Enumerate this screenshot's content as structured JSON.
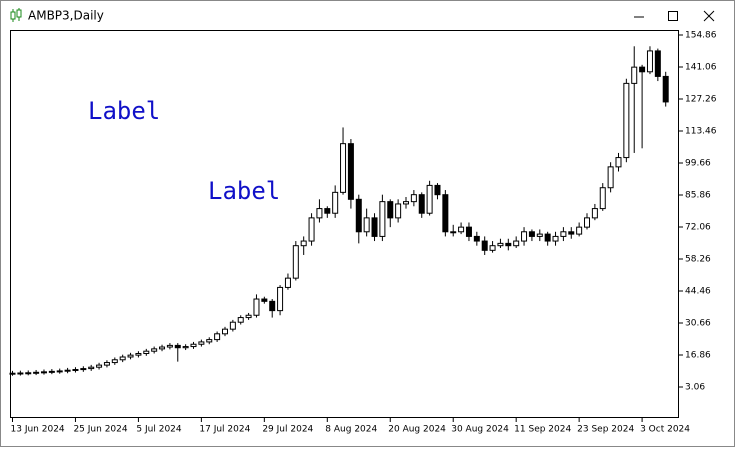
{
  "chart_data": {
    "type": "candlestick",
    "title": "AMBP3,Daily",
    "annotations": [
      "Label",
      "Label"
    ],
    "up_color": "#ffffff",
    "down_color": "#000000",
    "categories": [
      "13 Jun 2024",
      null,
      null,
      null,
      null,
      null,
      null,
      null,
      "25 Jun 2024",
      null,
      null,
      null,
      null,
      null,
      null,
      null,
      "5 Jul 2024",
      null,
      null,
      null,
      null,
      null,
      null,
      null,
      "17 Jul 2024",
      null,
      null,
      null,
      null,
      null,
      null,
      null,
      "29 Jul 2024",
      null,
      null,
      null,
      null,
      null,
      null,
      null,
      "8 Aug 2024",
      null,
      null,
      null,
      null,
      null,
      null,
      null,
      "20 Aug 2024",
      null,
      null,
      null,
      null,
      null,
      null,
      null,
      "30 Aug 2024",
      null,
      null,
      null,
      null,
      null,
      null,
      null,
      "11 Sep 2024",
      null,
      null,
      null,
      null,
      null,
      null,
      null,
      "23 Sep 2024",
      null,
      null,
      null,
      null,
      null,
      null,
      null,
      "3 Oct 2024",
      null,
      null,
      null
    ],
    "open": [
      8.9,
      9.0,
      9.1,
      9.2,
      9.4,
      9.6,
      9.8,
      10.0,
      10.3,
      10.6,
      11.0,
      11.6,
      12.5,
      13.6,
      14.8,
      16.0,
      16.8,
      17.5,
      18.5,
      19.5,
      20.3,
      21.0,
      20.0,
      20.5,
      21.5,
      22.5,
      23.5,
      26.0,
      28.0,
      31.0,
      33,
      34,
      41,
      40,
      36,
      46,
      50,
      64,
      66,
      76,
      80,
      78,
      87,
      108,
      84,
      70,
      76,
      68,
      83,
      76,
      82,
      83,
      86,
      78,
      90,
      86,
      70,
      70,
      72,
      68,
      66,
      62,
      64,
      65,
      64,
      66,
      70,
      68,
      69,
      66,
      68,
      70,
      69,
      72,
      76,
      80,
      89,
      98,
      102,
      134,
      141,
      139,
      148,
      137
    ],
    "high": [
      10.0,
      10.1,
      10.2,
      10.4,
      10.6,
      10.8,
      11.0,
      11.3,
      11.6,
      12.0,
      12.6,
      13.5,
      14.6,
      15.8,
      17.0,
      17.8,
      18.5,
      19.5,
      20.5,
      21.3,
      22.0,
      22.0,
      21.5,
      22.5,
      23.5,
      24.5,
      27.0,
      29.0,
      32.0,
      34.0,
      35,
      43,
      42,
      41,
      47,
      52,
      66,
      68,
      78,
      84,
      81,
      90,
      115,
      110,
      86,
      80,
      78,
      86,
      84,
      84,
      85,
      88,
      87,
      92,
      91,
      88,
      73,
      74,
      74,
      70,
      68,
      66,
      67,
      67,
      68,
      72,
      71,
      71,
      70,
      70,
      72,
      72,
      74,
      78,
      82,
      91,
      100,
      104,
      136,
      150,
      142,
      150,
      149,
      139
    ],
    "low": [
      7.9,
      8.0,
      8.1,
      8.2,
      8.4,
      8.6,
      8.8,
      9.0,
      9.3,
      9.6,
      10.0,
      10.6,
      11.5,
      12.6,
      13.8,
      15.0,
      15.8,
      16.5,
      17.5,
      18.5,
      19.3,
      14.0,
      19.0,
      19.5,
      20.5,
      21.5,
      22.5,
      25.0,
      27.0,
      30.0,
      32,
      33,
      39,
      33,
      34,
      45,
      49,
      60,
      64,
      74,
      76,
      76,
      86,
      80,
      65,
      68,
      66,
      66,
      72,
      74,
      80,
      81,
      76,
      77,
      84,
      68,
      68,
      69,
      66,
      64,
      60,
      61,
      63,
      62,
      63,
      64,
      66,
      66,
      64,
      64,
      66,
      67,
      68,
      71,
      75,
      79,
      87,
      96,
      100,
      104,
      106,
      138,
      135,
      124
    ],
    "close": [
      9.0,
      9.1,
      9.2,
      9.4,
      9.6,
      9.8,
      10.0,
      10.3,
      10.6,
      11.0,
      11.6,
      12.5,
      13.6,
      14.8,
      16.0,
      16.8,
      17.5,
      18.5,
      19.5,
      20.3,
      21.0,
      20.0,
      20.5,
      21.5,
      22.5,
      23.5,
      26.0,
      28.0,
      31.0,
      33.0,
      34,
      41,
      40,
      36,
      46,
      50,
      64,
      66,
      76,
      80,
      78,
      87,
      108,
      84,
      70,
      76,
      68,
      83,
      76,
      82,
      83,
      86,
      78,
      90,
      86,
      70,
      70,
      72,
      68,
      66,
      62,
      64,
      65,
      64,
      66,
      70,
      68,
      69,
      66,
      68,
      70,
      69,
      72,
      76,
      80,
      89,
      98,
      102,
      134,
      141,
      139,
      148,
      137,
      126
    ],
    "ylim": [
      -10.31,
      157.02
    ],
    "yticks": [
      154.86,
      141.06,
      127.26,
      113.46,
      99.66,
      85.86,
      72.06,
      58.26,
      44.46,
      30.66,
      16.86,
      3.06
    ]
  }
}
